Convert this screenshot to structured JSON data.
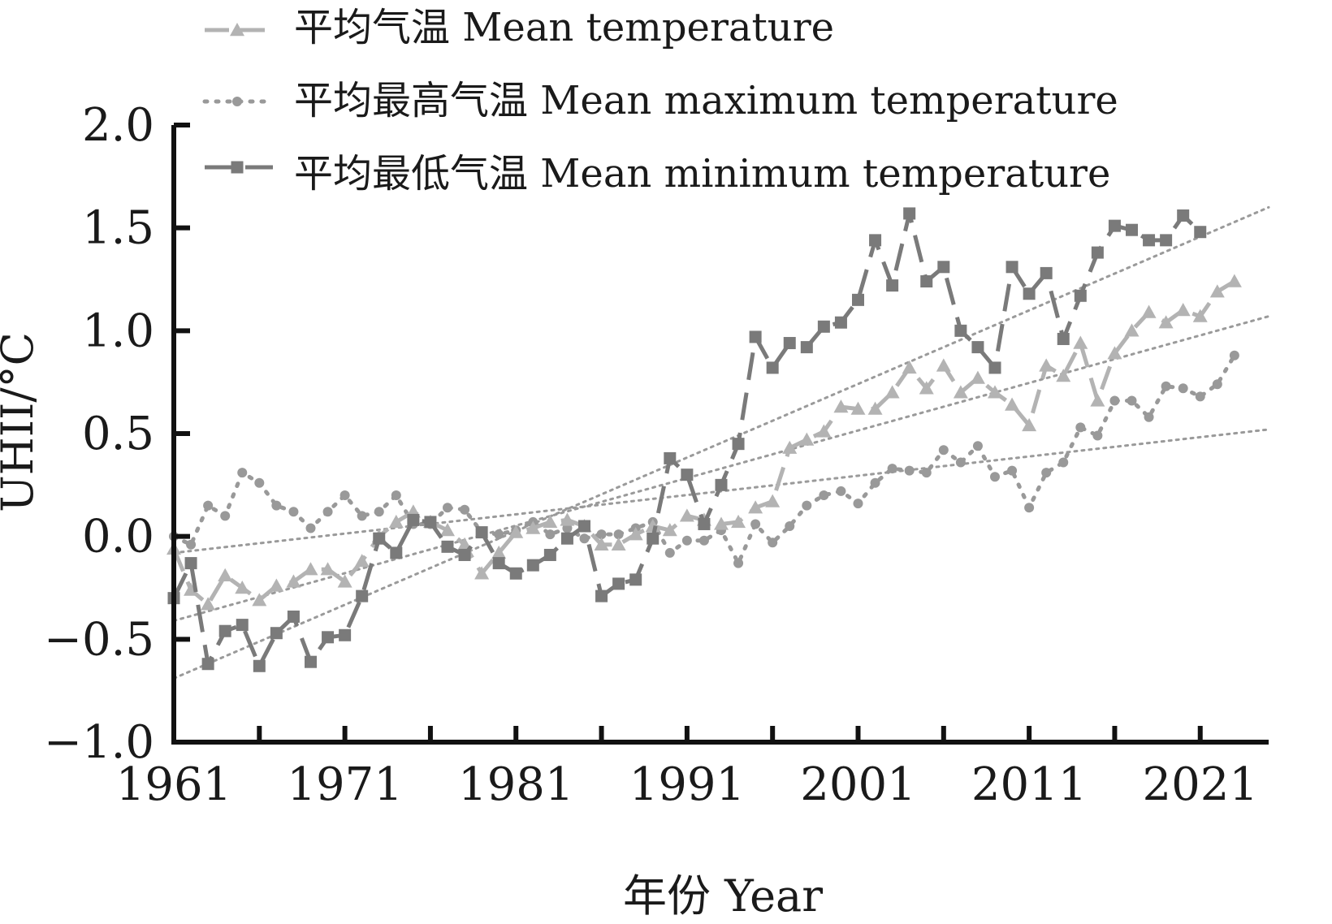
{
  "chart_data": {
    "type": "line",
    "xlabel": "年份  Year",
    "ylabel": "UHII/°C",
    "xlim": [
      1961,
      2025
    ],
    "ylim": [
      -1.0,
      2.0
    ],
    "x_ticks": [
      1961,
      1971,
      1981,
      1991,
      2001,
      2011,
      2021
    ],
    "y_ticks": [
      -1.0,
      -0.5,
      0.0,
      0.5,
      1.0,
      1.5,
      2.0
    ],
    "y_tick_labels": [
      "−1.0",
      "−0.5",
      "0.0",
      "0.5",
      "1.0",
      "1.5",
      "2.0"
    ],
    "legend_position": "top-left",
    "x": [
      1961,
      1962,
      1963,
      1964,
      1965,
      1966,
      1967,
      1968,
      1969,
      1970,
      1971,
      1972,
      1973,
      1974,
      1975,
      1976,
      1977,
      1978,
      1979,
      1980,
      1981,
      1982,
      1983,
      1984,
      1985,
      1986,
      1987,
      1988,
      1989,
      1990,
      1991,
      1992,
      1993,
      1994,
      1995,
      1996,
      1997,
      1998,
      1999,
      2000,
      2001,
      2002,
      2003,
      2004,
      2005,
      2006,
      2007,
      2008,
      2009,
      2010,
      2011,
      2012,
      2013,
      2014,
      2015,
      2016,
      2017,
      2018,
      2019,
      2020,
      2021,
      2022,
      2023,
      2024,
      2025
    ],
    "series": [
      {
        "name": "平均气温  Mean temperature",
        "legend_label": "平均气温  Mean temperature",
        "color": "#b3b3b3",
        "marker": "triangle",
        "line_style": "dash",
        "values": [
          -0.06,
          -0.26,
          -0.33,
          -0.19,
          -0.25,
          -0.31,
          -0.24,
          -0.22,
          -0.16,
          -0.16,
          -0.22,
          -0.12,
          0.0,
          0.07,
          0.12,
          0.07,
          0.03,
          -0.04,
          -0.18,
          -0.08,
          0.02,
          0.04,
          0.07,
          0.08,
          0.05,
          -0.04,
          -0.04,
          0.01,
          0.05,
          0.03,
          0.1,
          0.08,
          0.06,
          0.07,
          0.14,
          0.17,
          0.43,
          0.47,
          0.51,
          0.63,
          0.62,
          0.62,
          0.7,
          0.82,
          0.72,
          0.83,
          0.7,
          0.77,
          0.7,
          0.64,
          0.54,
          0.83,
          0.78,
          0.94,
          0.66,
          0.89,
          1.0,
          1.09,
          1.04,
          1.1,
          1.07,
          1.19,
          1.24,
          null,
          null
        ],
        "trend": [
          -0.41,
          1.07
        ]
      },
      {
        "name": "平均最高气温  Mean maximum temperature",
        "legend_label": "平均最高气温  Mean maximum temperature",
        "color": "#999999",
        "marker": "circle",
        "line_style": "dot",
        "values": [
          0.0,
          -0.04,
          0.15,
          0.1,
          0.31,
          0.26,
          0.15,
          0.12,
          0.04,
          0.12,
          0.2,
          0.1,
          0.12,
          0.2,
          0.06,
          0.06,
          0.14,
          0.13,
          0.02,
          0.01,
          0.03,
          0.07,
          0.01,
          0.04,
          -0.01,
          0.01,
          0.01,
          0.04,
          0.07,
          -0.08,
          -0.02,
          -0.02,
          0.03,
          -0.13,
          0.06,
          -0.03,
          0.05,
          0.15,
          0.2,
          0.22,
          0.16,
          0.26,
          0.33,
          0.32,
          0.31,
          0.42,
          0.36,
          0.44,
          0.29,
          0.32,
          0.14,
          0.31,
          0.36,
          0.53,
          0.49,
          0.66,
          0.66,
          0.58,
          0.73,
          0.72,
          0.68,
          0.74,
          0.88,
          null,
          null
        ],
        "trend": [
          -0.08,
          0.52
        ]
      },
      {
        "name": "平均最低气温  Mean minimum temperature",
        "legend_label": "平均最低气温  Mean minimum temperature",
        "color": "#7a7a7a",
        "marker": "square",
        "line_style": "longdash",
        "values": [
          -0.3,
          -0.13,
          -0.62,
          -0.46,
          -0.43,
          -0.63,
          -0.47,
          -0.39,
          -0.61,
          -0.49,
          -0.48,
          -0.29,
          -0.01,
          -0.08,
          0.08,
          0.07,
          -0.05,
          -0.09,
          0.02,
          -0.13,
          -0.18,
          -0.14,
          -0.09,
          -0.01,
          0.05,
          -0.29,
          -0.23,
          -0.21,
          -0.01,
          0.38,
          0.3,
          0.06,
          0.25,
          0.45,
          0.97,
          0.82,
          0.94,
          0.92,
          1.02,
          1.04,
          1.15,
          1.44,
          1.22,
          1.57,
          1.24,
          1.31,
          1.0,
          0.92,
          0.82,
          1.31,
          1.18,
          1.28,
          0.96,
          1.17,
          1.38,
          1.51,
          1.49,
          1.44,
          1.44,
          1.56,
          1.48,
          null,
          null,
          null,
          null
        ],
        "trend": [
          -0.69,
          1.6
        ]
      }
    ]
  }
}
